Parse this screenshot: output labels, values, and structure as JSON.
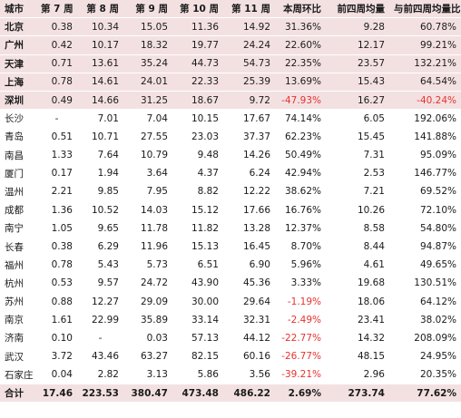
{
  "headers": [
    "城市",
    "第 7 周",
    "第 8 周",
    "第 9 周",
    "第 10 周",
    "第 11 周",
    "本周环比",
    "前四周均量",
    "与前四周均量比"
  ],
  "rows": [
    {
      "city": "北京",
      "tier": 1,
      "w7": "0.38",
      "w8": "10.34",
      "w9": "15.05",
      "w10": "11.36",
      "w11": "14.92",
      "wow": "31.36%",
      "avg4": "9.28",
      "vs_avg4": "60.78%"
    },
    {
      "city": "广州",
      "tier": 1,
      "w7": "0.42",
      "w8": "10.17",
      "w9": "18.32",
      "w10": "19.77",
      "w11": "24.24",
      "wow": "22.60%",
      "avg4": "12.17",
      "vs_avg4": "99.21%"
    },
    {
      "city": "天津",
      "tier": 1,
      "w7": "0.71",
      "w8": "13.61",
      "w9": "35.24",
      "w10": "44.73",
      "w11": "54.73",
      "wow": "22.35%",
      "avg4": "23.57",
      "vs_avg4": "132.21%"
    },
    {
      "city": "上海",
      "tier": 1,
      "w7": "0.78",
      "w8": "14.61",
      "w9": "24.01",
      "w10": "22.33",
      "w11": "25.39",
      "wow": "13.69%",
      "avg4": "15.43",
      "vs_avg4": "64.54%"
    },
    {
      "city": "深圳",
      "tier": 1,
      "w7": "0.49",
      "w8": "14.66",
      "w9": "31.25",
      "w10": "18.67",
      "w11": "9.72",
      "wow": "-47.93%",
      "avg4": "16.27",
      "vs_avg4": "-40.24%"
    },
    {
      "city": "长沙",
      "tier": 2,
      "w7": "-",
      "w8": "7.01",
      "w9": "7.04",
      "w10": "10.15",
      "w11": "17.67",
      "wow": "74.14%",
      "avg4": "6.05",
      "vs_avg4": "192.06%"
    },
    {
      "city": "青岛",
      "tier": 2,
      "w7": "0.51",
      "w8": "10.71",
      "w9": "27.55",
      "w10": "23.03",
      "w11": "37.37",
      "wow": "62.23%",
      "avg4": "15.45",
      "vs_avg4": "141.88%"
    },
    {
      "city": "南昌",
      "tier": 2,
      "w7": "1.33",
      "w8": "7.64",
      "w9": "10.79",
      "w10": "9.48",
      "w11": "14.26",
      "wow": "50.49%",
      "avg4": "7.31",
      "vs_avg4": "95.09%"
    },
    {
      "city": "厦门",
      "tier": 2,
      "w7": "0.17",
      "w8": "1.94",
      "w9": "3.64",
      "w10": "4.37",
      "w11": "6.24",
      "wow": "42.94%",
      "avg4": "2.53",
      "vs_avg4": "146.77%"
    },
    {
      "city": "温州",
      "tier": 2,
      "w7": "2.21",
      "w8": "9.85",
      "w9": "7.95",
      "w10": "8.82",
      "w11": "12.22",
      "wow": "38.62%",
      "avg4": "7.21",
      "vs_avg4": "69.52%"
    },
    {
      "city": "成都",
      "tier": 2,
      "w7": "1.36",
      "w8": "10.52",
      "w9": "14.03",
      "w10": "15.12",
      "w11": "17.66",
      "wow": "16.76%",
      "avg4": "10.26",
      "vs_avg4": "72.10%"
    },
    {
      "city": "南宁",
      "tier": 2,
      "w7": "1.05",
      "w8": "9.65",
      "w9": "11.78",
      "w10": "11.82",
      "w11": "13.28",
      "wow": "12.37%",
      "avg4": "8.58",
      "vs_avg4": "54.80%"
    },
    {
      "city": "长春",
      "tier": 2,
      "w7": "0.38",
      "w8": "6.29",
      "w9": "11.96",
      "w10": "15.13",
      "w11": "16.45",
      "wow": "8.70%",
      "avg4": "8.44",
      "vs_avg4": "94.87%"
    },
    {
      "city": "福州",
      "tier": 2,
      "w7": "0.78",
      "w8": "5.43",
      "w9": "5.73",
      "w10": "6.51",
      "w11": "6.90",
      "wow": "5.96%",
      "avg4": "4.61",
      "vs_avg4": "49.65%"
    },
    {
      "city": "杭州",
      "tier": 2,
      "w7": "0.53",
      "w8": "9.57",
      "w9": "24.72",
      "w10": "43.90",
      "w11": "45.36",
      "wow": "3.33%",
      "avg4": "19.68",
      "vs_avg4": "130.51%"
    },
    {
      "city": "苏州",
      "tier": 2,
      "w7": "0.88",
      "w8": "12.27",
      "w9": "29.09",
      "w10": "30.00",
      "w11": "29.64",
      "wow": "-1.19%",
      "avg4": "18.06",
      "vs_avg4": "64.12%"
    },
    {
      "city": "南京",
      "tier": 2,
      "w7": "1.61",
      "w8": "22.99",
      "w9": "35.89",
      "w10": "33.14",
      "w11": "32.31",
      "wow": "-2.49%",
      "avg4": "23.41",
      "vs_avg4": "38.02%"
    },
    {
      "city": "济南",
      "tier": 2,
      "w7": "0.10",
      "w8": "-",
      "w9": "0.03",
      "w10": "57.13",
      "w11": "44.12",
      "wow": "-22.77%",
      "avg4": "14.32",
      "vs_avg4": "208.09%"
    },
    {
      "city": "武汉",
      "tier": 2,
      "w7": "3.72",
      "w8": "43.46",
      "w9": "63.27",
      "w10": "82.15",
      "w11": "60.16",
      "wow": "-26.77%",
      "avg4": "48.15",
      "vs_avg4": "24.95%"
    },
    {
      "city": "石家庄",
      "tier": 2,
      "w7": "0.04",
      "w8": "2.82",
      "w9": "3.13",
      "w10": "5.86",
      "w11": "3.56",
      "wow": "-39.21%",
      "avg4": "2.96",
      "vs_avg4": "20.35%"
    }
  ],
  "total": {
    "city": "合计",
    "w7": "17.46",
    "w8": "223.53",
    "w9": "380.47",
    "w10": "473.48",
    "w11": "486.22",
    "wow": "2.69%",
    "avg4": "273.74",
    "vs_avg4": "77.62%"
  },
  "colors": {
    "header_bg": "#f3e1e2",
    "tier1_bg": "#f3e1e2",
    "negative_text": "#e8312f"
  }
}
